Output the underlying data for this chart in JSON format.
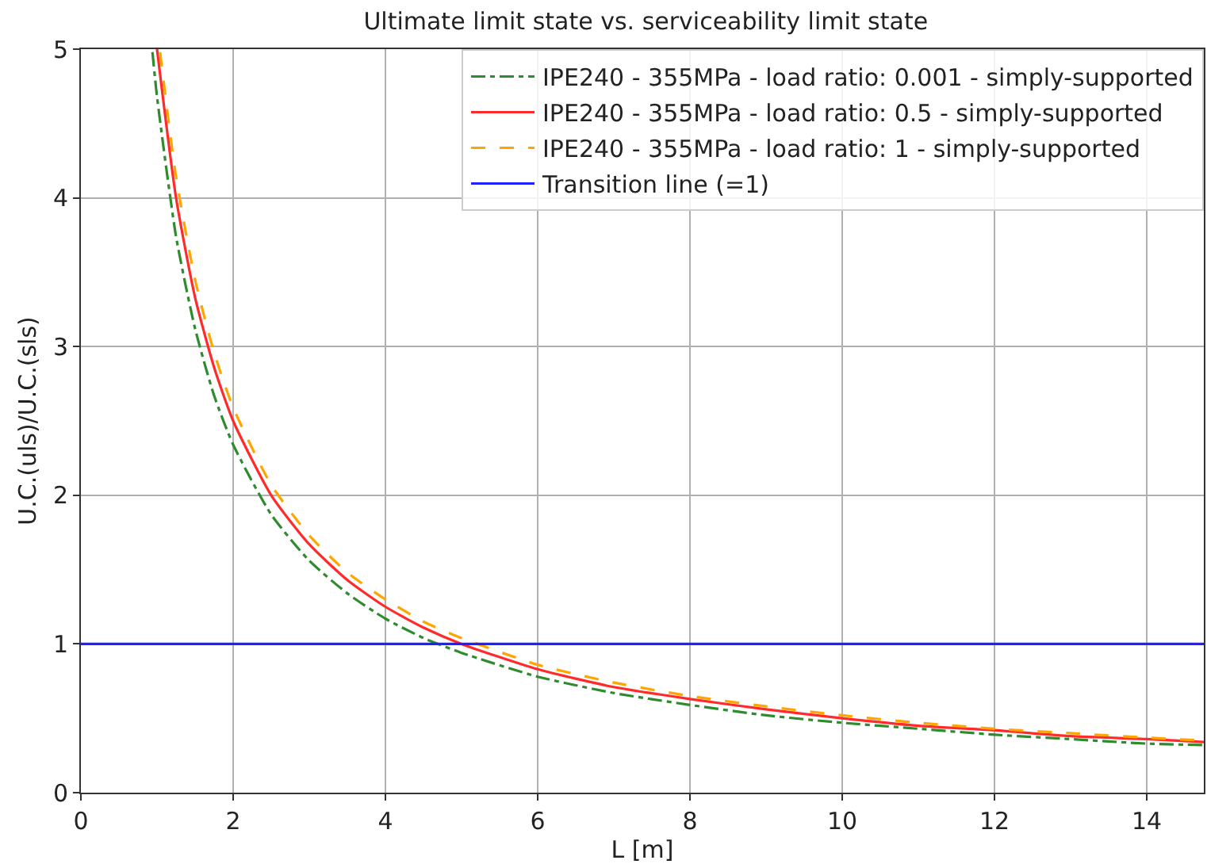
{
  "chart_data": {
    "type": "line",
    "title": "Ultimate limit state vs. serviceability limit state",
    "xlabel": "L [m]",
    "ylabel": "U.C.(uls)/U.C.(sls)",
    "xlim": [
      0,
      14.75
    ],
    "xticks": [
      0,
      2,
      4,
      6,
      8,
      10,
      12,
      14
    ],
    "ylim": [
      0,
      5
    ],
    "yticks": [
      0,
      1,
      2,
      3,
      4,
      5
    ],
    "grid": true,
    "legend": "top right",
    "marker": "none",
    "series": [
      {
        "name": "IPE240 - 355MPa - load ratio: 0.001 - simply-supported",
        "color": "#2e8b2e",
        "line_style": "dashdot",
        "x": [
          0.94,
          1,
          1.25,
          1.5,
          1.75,
          2,
          2.5,
          3,
          3.5,
          4,
          4.5,
          5,
          6,
          7,
          8,
          9,
          10,
          11,
          12,
          13,
          14,
          14.75
        ],
        "values": [
          4.98,
          4.68,
          3.74,
          3.12,
          2.67,
          2.34,
          1.87,
          1.56,
          1.34,
          1.17,
          1.04,
          0.94,
          0.78,
          0.67,
          0.59,
          0.52,
          0.47,
          0.43,
          0.39,
          0.36,
          0.33,
          0.32
        ]
      },
      {
        "name": "IPE240 - 355MPa - load ratio: 0.5 - simply-supported",
        "color": "#ff2a2a",
        "line_style": "solid",
        "x": [
          1,
          1.25,
          1.5,
          1.75,
          2,
          2.5,
          3,
          3.5,
          4,
          4.5,
          5,
          6,
          7,
          8,
          9,
          10,
          11,
          12,
          13,
          14,
          14.75
        ],
        "values": [
          5.0,
          4.0,
          3.33,
          2.86,
          2.5,
          2.0,
          1.67,
          1.43,
          1.25,
          1.11,
          1.0,
          0.83,
          0.71,
          0.63,
          0.56,
          0.5,
          0.45,
          0.42,
          0.38,
          0.36,
          0.34
        ]
      },
      {
        "name": "IPE240 - 355MPa - load ratio: 1 - simply-supported",
        "color": "#ffa500",
        "line_style": "dashed",
        "x": [
          1.04,
          1.25,
          1.5,
          1.75,
          2,
          2.5,
          3,
          3.5,
          4,
          4.5,
          5,
          6,
          7,
          8,
          9,
          10,
          11,
          12,
          13,
          14,
          14.75
        ],
        "values": [
          4.98,
          4.14,
          3.45,
          2.96,
          2.59,
          2.07,
          1.73,
          1.48,
          1.3,
          1.15,
          1.04,
          0.86,
          0.74,
          0.65,
          0.58,
          0.52,
          0.47,
          0.43,
          0.4,
          0.37,
          0.35
        ]
      },
      {
        "name": "Transition line (=1)",
        "color": "#2020ff",
        "line_style": "solid",
        "x": [
          0,
          14.75
        ],
        "values": [
          1,
          1
        ]
      }
    ]
  }
}
